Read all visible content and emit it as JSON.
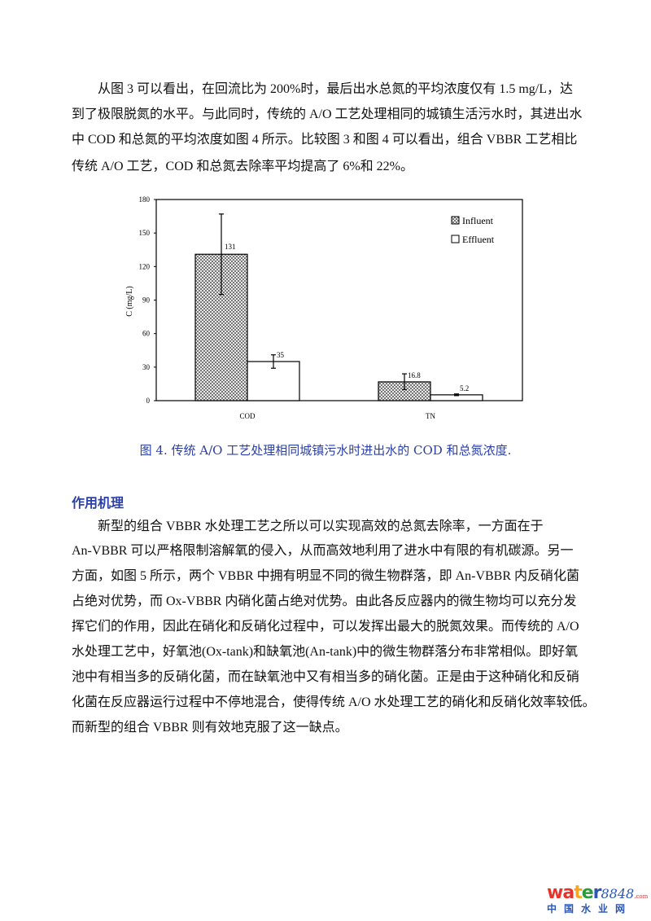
{
  "paragraph1": [
    "　　从图 3 可以看出，在回流比为 200%时，最后出水总氮的平均浓度仅有 1.5 mg/L，达",
    "到了极限脱氮的水平。与此同时，传统的 A/O 工艺处理相同的城镇生活污水时，其进出水",
    "中 COD 和总氮的平均浓度如图 4 所示。比较图 3 和图 4 可以看出，组合 VBBR 工艺相比",
    "传统 A/O 工艺，COD 和总氮去除率平均提高了 6%和 22%。"
  ],
  "chart_data": {
    "type": "bar",
    "categories": [
      "COD",
      "TN"
    ],
    "series": [
      {
        "name": "Influent",
        "values": [
          131,
          16.8
        ],
        "error_low": [
          95,
          10
        ],
        "error_high": [
          167,
          24
        ],
        "pattern": "checkered"
      },
      {
        "name": "Effluent",
        "values": [
          35,
          5.2
        ],
        "error_low": [
          29,
          4.5
        ],
        "error_high": [
          41,
          6
        ],
        "pattern": "none"
      }
    ],
    "data_labels": [
      "131",
      "35",
      "16.8",
      "5.2"
    ],
    "ylabel": "C (mg/L)",
    "ylim": [
      0,
      180
    ],
    "yticks": [
      "0",
      "30",
      "60",
      "90",
      "120",
      "150",
      "180"
    ],
    "legend": "top-right",
    "grid": false
  },
  "caption": "图 4. 传统 A/O 工艺处理相同城镇污水时进出水的 COD 和总氮浓度.",
  "section_heading": "作用机理",
  "paragraph2": [
    "　　新型的组合 VBBR 水处理工艺之所以可以实现高效的总氮去除率，一方面在于",
    "An-VBBR 可以严格限制溶解氧的侵入，从而高效地利用了进水中有限的有机碳源。另一",
    "方面，如图 5 所示，两个 VBBR 中拥有明显不同的微生物群落，即 An-VBBR 内反硝化菌",
    "占绝对优势，而 Ox-VBBR 内硝化菌占绝对优势。由此各反应器内的微生物均可以充分发",
    "挥它们的作用，因此在硝化和反硝化过程中，可以发挥出最大的脱氮效果。而传统的 A/O",
    "水处理工艺中，好氧池(Ox-tank)和缺氧池(An-tank)中的微生物群落分布非常相似。即好氧",
    "池中有相当多的反硝化菌，而在缺氧池中又有相当多的硝化菌。正是由于这种硝化和反硝",
    "化菌在反应器运行过程中不停地混合，使得传统 A/O 水处理工艺的硝化和反硝化效率较低。",
    "而新型的组合 VBBR 则有效地克服了这一缺点。"
  ],
  "logo": {
    "text": "water8848.com",
    "subtitle": "中国水业网",
    "colors": [
      "#e8332a",
      "#f5a623",
      "#2a9d3a",
      "#2a56b5"
    ]
  },
  "accent_color": "#2b3fa8"
}
